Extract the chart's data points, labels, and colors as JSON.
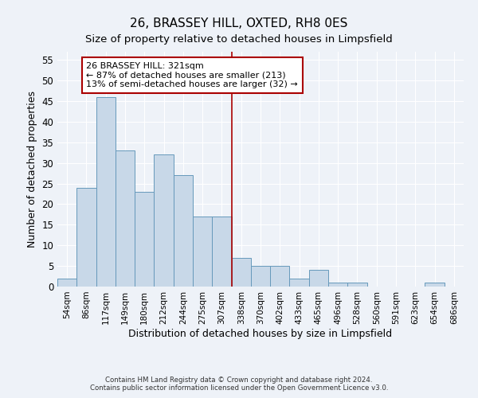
{
  "title": "26, BRASSEY HILL, OXTED, RH8 0ES",
  "subtitle": "Size of property relative to detached houses in Limpsfield",
  "xlabel": "Distribution of detached houses by size in Limpsfield",
  "ylabel": "Number of detached properties",
  "categories": [
    "54sqm",
    "86sqm",
    "117sqm",
    "149sqm",
    "180sqm",
    "212sqm",
    "244sqm",
    "275sqm",
    "307sqm",
    "338sqm",
    "370sqm",
    "402sqm",
    "433sqm",
    "465sqm",
    "496sqm",
    "528sqm",
    "560sqm",
    "591sqm",
    "623sqm",
    "654sqm",
    "686sqm"
  ],
  "values": [
    2,
    24,
    46,
    33,
    23,
    32,
    27,
    17,
    17,
    7,
    5,
    5,
    2,
    4,
    1,
    1,
    0,
    0,
    0,
    1,
    0
  ],
  "bar_color": "#c8d8e8",
  "bar_edge_color": "#6699bb",
  "vline_x": 8.5,
  "vline_color": "#aa0000",
  "annotation_line1": "26 BRASSEY HILL: 321sqm",
  "annotation_line2": "← 87% of detached houses are smaller (213)",
  "annotation_line3": "13% of semi-detached houses are larger (32) →",
  "annotation_box_color": "#aa0000",
  "annotation_fontsize": 8,
  "ylim": [
    0,
    57
  ],
  "yticks": [
    0,
    5,
    10,
    15,
    20,
    25,
    30,
    35,
    40,
    45,
    50,
    55
  ],
  "footer_line1": "Contains HM Land Registry data © Crown copyright and database right 2024.",
  "footer_line2": "Contains public sector information licensed under the Open Government Licence v3.0.",
  "background_color": "#eef2f8",
  "plot_background_color": "#eef2f8",
  "title_fontsize": 11,
  "subtitle_fontsize": 9.5,
  "xlabel_fontsize": 9,
  "ylabel_fontsize": 9
}
